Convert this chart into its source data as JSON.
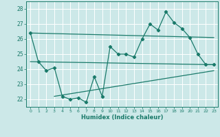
{
  "title": "",
  "xlabel": "Humidex (Indice chaleur)",
  "ylabel": "",
  "bg_color": "#cce8e8",
  "grid_color": "#ffffff",
  "line_color": "#1a7a6a",
  "xlim": [
    -0.5,
    23.5
  ],
  "ylim": [
    21.5,
    28.5
  ],
  "xticks": [
    0,
    1,
    2,
    3,
    4,
    5,
    6,
    7,
    8,
    9,
    10,
    11,
    12,
    13,
    14,
    15,
    16,
    17,
    18,
    19,
    20,
    21,
    22,
    23
  ],
  "yticks": [
    22,
    23,
    24,
    25,
    26,
    27,
    28
  ],
  "line1_x": [
    0,
    1,
    2,
    3,
    4,
    5,
    6,
    7,
    8,
    9,
    10,
    11,
    12,
    13,
    14,
    15,
    16,
    17,
    18,
    19,
    20,
    21,
    22,
    23
  ],
  "line1_y": [
    26.4,
    24.5,
    23.9,
    24.1,
    22.2,
    22.0,
    22.1,
    21.8,
    23.5,
    22.2,
    25.5,
    25.0,
    25.0,
    24.8,
    26.0,
    27.0,
    26.6,
    27.8,
    27.1,
    26.7,
    26.1,
    25.0,
    24.3,
    24.3
  ],
  "line2_x": [
    0,
    23
  ],
  "line2_y": [
    26.4,
    26.1
  ],
  "line3_x": [
    0,
    23
  ],
  "line3_y": [
    24.5,
    24.3
  ],
  "line4_x": [
    3,
    23
  ],
  "line4_y": [
    22.2,
    23.9
  ]
}
